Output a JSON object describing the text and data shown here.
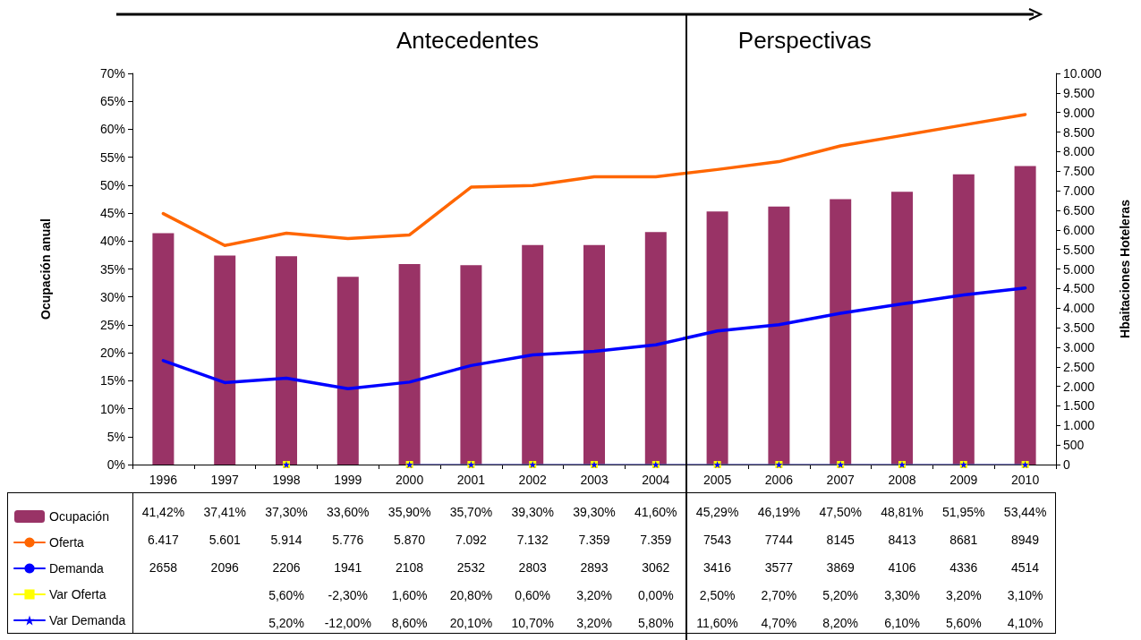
{
  "chart_data": {
    "type": "bar",
    "xlabel": null,
    "ylabel": "Ocupación anual",
    "y2label": "Hbaitaciones Hoteleras",
    "categories": [
      "1996",
      "1997",
      "1998",
      "1999",
      "2000",
      "2001",
      "2002",
      "2003",
      "2004",
      "2005",
      "2006",
      "2007",
      "2008",
      "2009",
      "2010"
    ],
    "series": [
      {
        "name": "Ocupación",
        "color": "#993366",
        "values": [
          41.42,
          37.41,
          37.3,
          33.6,
          35.9,
          35.7,
          39.3,
          39.3,
          41.6,
          45.29,
          46.19,
          47.5,
          48.81,
          51.95,
          53.44
        ],
        "value_labels": [
          "41,42%",
          "37,41%",
          "37,30%",
          "33,60%",
          "35,90%",
          "35,70%",
          "39,30%",
          "39,30%",
          "41,60%",
          "45,29%",
          "46,19%",
          "47,50%",
          "48,81%",
          "51,95%",
          "53,44%"
        ]
      },
      {
        "name": "Oferta",
        "type": "line",
        "axis": "y2",
        "color": "#ff6600",
        "marker": "none",
        "values": [
          6417,
          5601,
          5914,
          5776,
          5870,
          7092,
          7132,
          7359,
          7359,
          7543,
          7744,
          8145,
          8413,
          8681,
          8949
        ],
        "value_labels": [
          "6.417",
          "5.601",
          "5.914",
          "5.776",
          "5.870",
          "7.092",
          "7.132",
          "7.359",
          "7.359",
          "7543",
          "7744",
          "8145",
          "8413",
          "8681",
          "8949"
        ]
      },
      {
        "name": "Demanda",
        "type": "line",
        "axis": "y2",
        "color": "#0000ff",
        "marker": "none",
        "values": [
          2658,
          2096,
          2206,
          1941,
          2108,
          2532,
          2803,
          2893,
          3062,
          3416,
          3577,
          3869,
          4106,
          4336,
          4514
        ],
        "value_labels": [
          "2658",
          "2096",
          "2206",
          "1941",
          "2108",
          "2532",
          "2803",
          "2893",
          "3062",
          "3416",
          "3577",
          "3869",
          "4106",
          "4336",
          "4514"
        ]
      },
      {
        "name": "Var Oferta",
        "type": "line",
        "axis": "y2",
        "color": "#ffff00",
        "marker": "square",
        "values": [
          null,
          null,
          0.056,
          null,
          0.016,
          0.208,
          0.006,
          0.032,
          0,
          0.025,
          0.027,
          0.052,
          0.033,
          0.032,
          0.031
        ],
        "value_labels": [
          null,
          null,
          "5,60%",
          "-2,30%",
          "1,60%",
          "20,80%",
          "0,60%",
          "3,20%",
          "0,00%",
          "2,50%",
          "2,70%",
          "5,20%",
          "3,30%",
          "3,20%",
          "3,10%"
        ]
      },
      {
        "name": "Var Demanda",
        "type": "line",
        "axis": "y2",
        "color": "#0000ff",
        "marker": "star",
        "values": [
          null,
          null,
          0.052,
          null,
          0.086,
          0.201,
          0.107,
          0.032,
          0.058,
          0.116,
          0.047,
          0.082,
          0.061,
          0.056,
          0.041
        ],
        "value_labels": [
          null,
          null,
          "5,20%",
          "-12,00%",
          "8,60%",
          "20,10%",
          "10,70%",
          "3,20%",
          "5,80%",
          "11,60%",
          "4,70%",
          "8,20%",
          "6,10%",
          "5,60%",
          "4,10%"
        ]
      }
    ],
    "ylim": [
      0,
      70
    ],
    "yticks": [
      {
        "value": 0,
        "label": "0%"
      },
      {
        "value": 5,
        "label": "5%"
      },
      {
        "value": 10,
        "label": "10%"
      },
      {
        "value": 15,
        "label": "15%"
      },
      {
        "value": 20,
        "label": "20%"
      },
      {
        "value": 25,
        "label": "25%"
      },
      {
        "value": 30,
        "label": "30%"
      },
      {
        "value": 35,
        "label": "35%"
      },
      {
        "value": 40,
        "label": "40%"
      },
      {
        "value": 45,
        "label": "45%"
      },
      {
        "value": 50,
        "label": "50%"
      },
      {
        "value": 55,
        "label": "55%"
      },
      {
        "value": 60,
        "label": "60%"
      },
      {
        "value": 65,
        "label": "65%"
      },
      {
        "value": 70,
        "label": "70%"
      }
    ],
    "y2lim": [
      0,
      10000
    ],
    "y2ticks": [
      0,
      500,
      {
        "value": 1000,
        "label": "1.000"
      },
      {
        "value": 1500,
        "label": "1.500"
      },
      {
        "value": 2000,
        "label": "2.000"
      },
      {
        "value": 2500,
        "label": "2.500"
      },
      {
        "value": 3000,
        "label": "3.000"
      },
      {
        "value": 3500,
        "label": "3.500"
      },
      {
        "value": 4000,
        "label": "4.000"
      },
      {
        "value": 4500,
        "label": "4.500"
      },
      {
        "value": 5000,
        "label": "5.000"
      },
      {
        "value": 5500,
        "label": "5.500"
      },
      {
        "value": 6000,
        "label": "6.000"
      },
      {
        "value": 6500,
        "label": "6.500"
      },
      {
        "value": 7000,
        "label": "7.000"
      },
      {
        "value": 7500,
        "label": "7.500"
      },
      {
        "value": 8000,
        "label": "8.000"
      },
      {
        "value": 8500,
        "label": "8.500"
      },
      {
        "value": 9000,
        "label": "9.000"
      },
      {
        "value": 9500,
        "label": "9.500"
      },
      {
        "value": 10000,
        "label": "10.000"
      }
    ],
    "annotations": [
      "Antecedentes",
      "Perspectivas"
    ],
    "grid": false,
    "legend": "bottom left",
    "line_style": "solid"
  }
}
